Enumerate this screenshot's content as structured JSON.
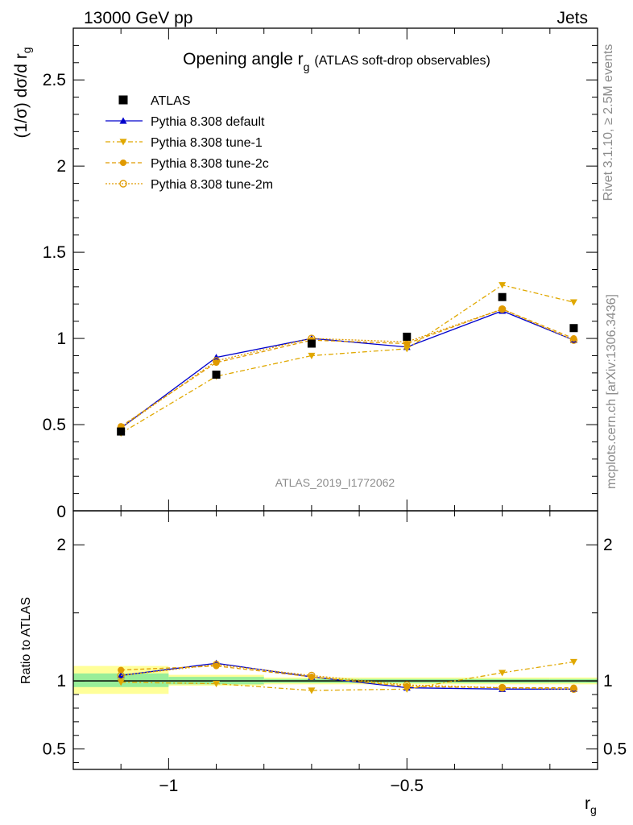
{
  "header": {
    "left": "13000 GeV pp",
    "right": "Jets"
  },
  "side": {
    "rivet": "Rivet 3.1.10, ≥ 2.5M events",
    "mcplots": "mcplots.cern.ch [arXiv:1306.3436]"
  },
  "chart_data": {
    "type": "line",
    "title": "Opening angle r",
    "title_sub": "g",
    "title_suffix": "(ATLAS soft-drop observables)",
    "analysis": "ATLAS_2019_I1772062",
    "ylabel": "(1/σ) dσ/d r",
    "ylabel_sub": "g",
    "xlabel": "r",
    "xlabel_sub": "g",
    "xlim": [
      -1.2,
      -0.1
    ],
    "main": {
      "ylim": [
        0,
        2.8
      ],
      "yticks": [
        {
          "v": 0.5,
          "label": "0.5"
        },
        {
          "v": 1,
          "label": "1"
        },
        {
          "v": 1.5,
          "label": "1.5"
        },
        {
          "v": 2,
          "label": "2"
        },
        {
          "v": 2.5,
          "label": "2.5"
        }
      ],
      "ytick0_label": "0"
    },
    "ratio": {
      "ylabel": "Ratio to ATLAS",
      "ylim": [
        0.35,
        2.25
      ],
      "yticks": [
        {
          "v": 0.5,
          "label": "0.5"
        },
        {
          "v": 1,
          "label": "1"
        },
        {
          "v": 2,
          "label": "2"
        }
      ]
    },
    "xticks": [
      {
        "v": -1,
        "label": "−1"
      },
      {
        "v": -0.5,
        "label": "−0.5"
      }
    ],
    "bins": [
      {
        "lo": -1.2,
        "hi": -1.0,
        "x": -1.1
      },
      {
        "lo": -1.0,
        "hi": -0.8,
        "x": -0.9
      },
      {
        "lo": -0.8,
        "hi": -0.6,
        "x": -0.7
      },
      {
        "lo": -0.6,
        "hi": -0.4,
        "x": -0.5
      },
      {
        "lo": -0.4,
        "hi": -0.2,
        "x": -0.3
      },
      {
        "lo": -0.2,
        "hi": -0.1,
        "x": -0.15
      }
    ],
    "bands": {
      "green": [
        [
          0.955,
          1.055
        ],
        [
          0.975,
          1.03
        ],
        [
          0.985,
          1.015
        ],
        [
          0.985,
          1.015
        ],
        [
          0.985,
          1.015
        ],
        [
          0.985,
          1.015
        ]
      ],
      "yellow": [
        [
          0.905,
          1.11
        ],
        [
          0.965,
          1.045
        ],
        [
          0.975,
          1.025
        ],
        [
          0.975,
          1.025
        ],
        [
          0.975,
          1.025
        ],
        [
          0.975,
          1.025
        ]
      ]
    },
    "series": [
      {
        "name": "ATLAS",
        "type": "data",
        "color": "#000000",
        "marker": "square",
        "values": [
          0.46,
          0.79,
          0.97,
          1.01,
          1.24,
          1.06
        ],
        "ratio": [
          1,
          1,
          1,
          1,
          1,
          1
        ]
      },
      {
        "name": "Pythia 8.308 default",
        "color": "#0000cc",
        "marker": "triangle-up",
        "dash": "",
        "values": [
          0.48,
          0.89,
          1.0,
          0.95,
          1.16,
          0.99
        ],
        "ratio": [
          1.04,
          1.13,
          1.03,
          0.95,
          0.94,
          0.94
        ]
      },
      {
        "name": "Pythia 8.308 tune-1",
        "color": "#e0a800",
        "marker": "triangle-down",
        "dash": "6,3,2,3",
        "values": [
          0.45,
          0.78,
          0.9,
          0.94,
          1.31,
          1.21
        ],
        "ratio": [
          0.99,
          0.98,
          0.93,
          0.94,
          1.06,
          1.14
        ]
      },
      {
        "name": "Pythia 8.308 tune-2c",
        "color": "#e09a00",
        "marker": "circle",
        "dash": "5,3",
        "values": [
          0.49,
          0.86,
          0.99,
          0.97,
          1.17,
          1.0
        ],
        "ratio": [
          1.08,
          1.11,
          1.03,
          0.96,
          0.95,
          0.95
        ]
      },
      {
        "name": "Pythia 8.308 tune-2m",
        "color": "#e09a00",
        "marker": "circle-open",
        "dash": "2,2",
        "values": [
          0.48,
          0.87,
          1.0,
          0.98,
          1.17,
          0.99
        ],
        "ratio": [
          1.04,
          1.12,
          1.04,
          0.97,
          0.95,
          0.94
        ]
      }
    ]
  }
}
